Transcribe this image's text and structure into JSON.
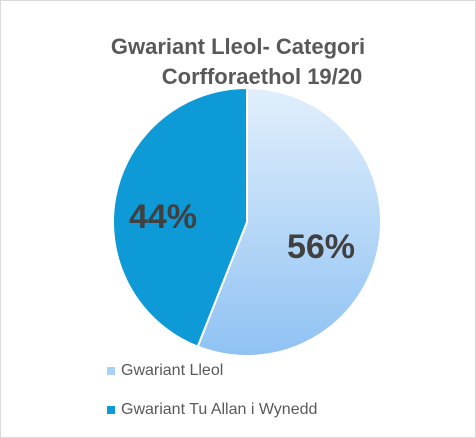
{
  "chart_data": {
    "type": "pie",
    "title": [
      "Gwariant Lleol- Categori",
      "Corfforaethol 19/20"
    ],
    "categories": [
      "Gwariant Lleol",
      "Gwariant Tu Allan i Wynedd"
    ],
    "values": [
      56,
      44
    ],
    "value_labels": [
      "56%",
      "44%"
    ],
    "colors": [
      "#a9d2f7",
      "#0e9ad6"
    ],
    "legend": "bottom"
  }
}
